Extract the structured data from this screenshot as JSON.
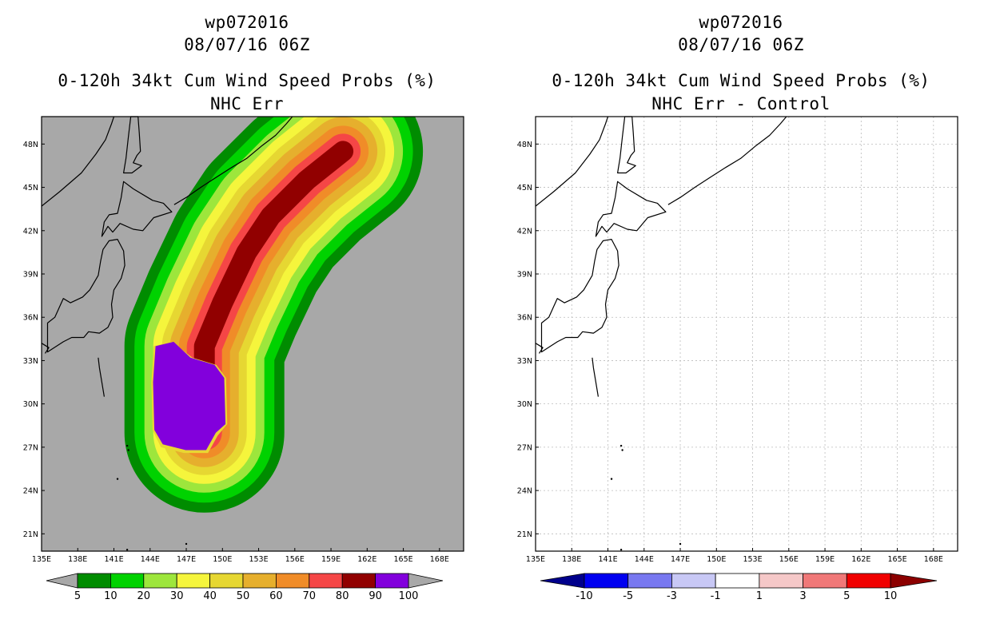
{
  "panels": [
    {
      "title_line1": "wp072016",
      "title_line2": "08/07/16 06Z",
      "title_line3": "0-120h 34kt Cum Wind Speed Probs (%)",
      "title_line4": "NHC Err",
      "colorbar_labels": [
        "5",
        "10",
        "20",
        "30",
        "40",
        "50",
        "60",
        "70",
        "80",
        "90",
        "100"
      ],
      "colorbar_colors": [
        "#008c00",
        "#00d200",
        "#9de63c",
        "#f5f53c",
        "#e6d732",
        "#e6af2d",
        "#f08c28",
        "#f54646",
        "#910000",
        "#8200dc"
      ]
    },
    {
      "title_line1": "wp072016",
      "title_line2": "08/07/16 06Z",
      "title_line3": "0-120h 34kt Cum Wind Speed Probs (%)",
      "title_line4": "NHC Err - Control",
      "colorbar_labels": [
        "-10",
        "-5",
        "-3",
        "-1",
        "1",
        "3",
        "5",
        "10"
      ],
      "colorbar_colors": [
        "#00008c",
        "#0000f0",
        "#7878f0",
        "#c8c8f5",
        "#ffffff",
        "#f5c8c8",
        "#f07878",
        "#f00000",
        "#8c0000"
      ]
    }
  ],
  "map_axes": {
    "lat_labels": [
      "21N",
      "24N",
      "27N",
      "30N",
      "33N",
      "36N",
      "39N",
      "42N",
      "45N",
      "48N"
    ],
    "lon_labels": [
      "135E",
      "138E",
      "141E",
      "144E",
      "147E",
      "150E",
      "153E",
      "156E",
      "159E",
      "162E",
      "165E",
      "168E"
    ]
  },
  "chart_data": {
    "type": "heatmap",
    "field": "0-120h 34kt cumulative wind speed probability (%)",
    "storm": "wp072016",
    "valid": "08/07/16 06Z",
    "lon_range": [
      135,
      170
    ],
    "lat_range": [
      19.8,
      49.9
    ],
    "background_color": "#a8a8a8",
    "probability_levels": [
      5,
      10,
      20,
      30,
      40,
      50,
      60,
      70,
      80,
      90,
      100
    ],
    "level_colors": [
      "#008c00",
      "#00d200",
      "#9de63c",
      "#f5f53c",
      "#e6d732",
      "#e6af2d",
      "#f08c28",
      "#f54646",
      "#910000",
      "#8200dc"
    ],
    "track_core": [
      [
        148.5,
        28.0
      ],
      [
        148.5,
        31.0
      ],
      [
        148.5,
        34.0
      ],
      [
        150.0,
        37.0
      ],
      [
        152.0,
        40.5
      ],
      [
        154.0,
        43.0
      ],
      [
        157.0,
        45.5
      ],
      [
        160.0,
        47.5
      ]
    ],
    "difference_field": "NHC Err - Control",
    "difference_levels": [
      -10,
      -5,
      -3,
      -1,
      1,
      3,
      5,
      10
    ],
    "difference_field_nonzero": false
  }
}
